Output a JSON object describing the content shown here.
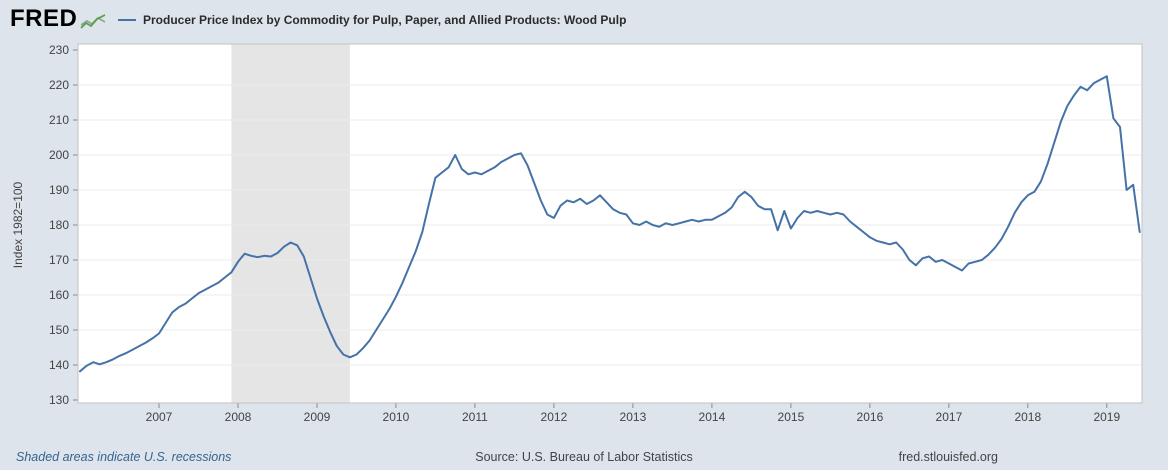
{
  "header": {
    "logo_text": "FRED",
    "legend_label": "Producer Price Index by Commodity for Pulp, Paper, and Allied Products: Wood Pulp"
  },
  "footer": {
    "recession_note": "Shaded areas indicate U.S. recessions",
    "source": "Source: U.S. Bureau of Labor Statistics",
    "site": "fred.stlouisfed.org"
  },
  "chart_data": {
    "type": "line",
    "title": "Producer Price Index by Commodity for Pulp, Paper, and Allied Products: Wood Pulp",
    "ylabel": "Index 1982=100",
    "xlabel": "",
    "ylim": [
      130,
      230
    ],
    "xlim": [
      2006.0,
      2019.42
    ],
    "yticks": [
      130,
      140,
      150,
      160,
      170,
      180,
      190,
      200,
      210,
      220,
      230
    ],
    "xticks": [
      2007,
      2008,
      2009,
      2010,
      2011,
      2012,
      2013,
      2014,
      2015,
      2016,
      2017,
      2018,
      2019
    ],
    "frequency": "monthly",
    "start_year": 2006,
    "recession_bands": [
      [
        2007.9167,
        2009.4167
      ]
    ],
    "colors": {
      "line": "#4572a7",
      "recession": "#e5e5e5",
      "gridline": "#ebebeb",
      "frame": "#c2c2c2",
      "axis": "#8a8a8a",
      "plot_bg": "#ffffff",
      "page_bg": "#dde4ec"
    },
    "legend_position": "top",
    "grid": true,
    "values": [
      138.2,
      139.8,
      140.8,
      140.2,
      140.8,
      141.6,
      142.6,
      143.4,
      144.4,
      145.4,
      146.4,
      147.6,
      149.0,
      152.0,
      155.0,
      156.5,
      157.5,
      159.0,
      160.5,
      161.5,
      162.5,
      163.5,
      165.0,
      166.5,
      169.5,
      171.8,
      171.2,
      170.8,
      171.2,
      171.0,
      172.0,
      173.8,
      175.0,
      174.2,
      171.0,
      165.0,
      159.0,
      154.0,
      149.5,
      145.5,
      143.0,
      142.2,
      143.0,
      144.8,
      147.0,
      150.0,
      153.0,
      156.0,
      159.5,
      163.5,
      168.0,
      172.5,
      178.0,
      186.0,
      193.5,
      195.0,
      196.5,
      200.0,
      196.0,
      194.5,
      195.0,
      194.5,
      195.5,
      196.5,
      198.0,
      199.0,
      200.0,
      200.5,
      197.0,
      192.0,
      187.0,
      183.0,
      182.0,
      185.5,
      187.0,
      186.5,
      187.5,
      186.0,
      187.0,
      188.5,
      186.5,
      184.5,
      183.5,
      183.0,
      180.5,
      180.0,
      181.0,
      180.0,
      179.5,
      180.5,
      180.0,
      180.5,
      181.0,
      181.5,
      181.0,
      181.5,
      181.5,
      182.5,
      183.5,
      185.0,
      188.0,
      189.5,
      188.0,
      185.5,
      184.5,
      184.5,
      178.5,
      184.0,
      179.0,
      182.0,
      184.0,
      183.5,
      184.0,
      183.5,
      183.0,
      183.5,
      183.0,
      181.0,
      179.5,
      178.0,
      176.5,
      175.5,
      175.0,
      174.5,
      175.0,
      173.0,
      170.0,
      168.5,
      170.5,
      171.0,
      169.5,
      170.0,
      169.0,
      168.0,
      167.0,
      169.0,
      169.5,
      170.0,
      171.5,
      173.5,
      176.0,
      179.5,
      183.5,
      186.5,
      188.5,
      189.5,
      192.5,
      197.5,
      203.5,
      209.5,
      214.0,
      217.0,
      219.5,
      218.5,
      220.5,
      221.5,
      222.5,
      210.5,
      208.0,
      190.0,
      191.5,
      178.0
    ]
  }
}
